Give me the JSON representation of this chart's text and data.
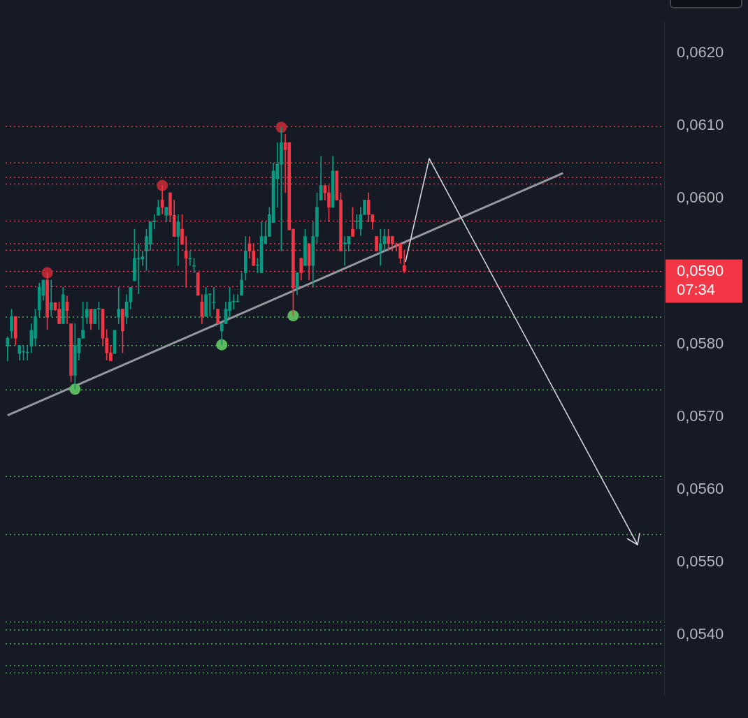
{
  "chart_data": {
    "type": "candlestick",
    "categories": [
      null,
      null,
      null,
      null,
      null,
      null,
      null,
      null,
      null,
      null,
      null,
      null,
      null,
      null,
      null,
      null,
      null,
      null,
      null,
      null,
      null,
      null,
      null,
      null,
      null,
      null,
      null,
      null,
      null,
      null,
      null,
      null,
      null,
      null,
      null,
      null,
      null,
      null,
      null,
      null,
      null,
      null,
      null,
      null,
      null,
      null,
      null,
      null,
      null,
      null,
      null,
      null,
      null,
      null,
      null,
      null,
      null,
      null,
      null,
      null,
      null,
      null,
      null,
      null,
      null,
      null,
      null,
      null,
      null,
      null,
      null,
      null,
      null,
      null,
      null,
      null,
      null,
      null,
      null,
      null,
      null,
      null,
      null,
      null,
      null,
      null,
      null,
      null,
      null,
      null,
      null,
      null,
      null,
      null,
      null,
      null,
      null,
      null,
      null,
      null,
      null,
      null,
      null,
      null,
      null,
      null,
      null,
      null,
      null,
      null,
      null,
      null,
      null,
      null,
      null,
      null,
      null,
      null,
      null,
      null,
      null,
      null,
      null,
      null,
      null,
      null,
      null,
      null,
      null,
      null,
      null,
      null,
      null,
      null,
      null,
      null,
      null,
      null,
      null,
      null,
      null,
      null,
      null,
      null,
      null,
      null,
      null,
      null,
      null,
      null,
      null,
      null,
      null,
      null,
      null,
      null,
      null,
      null,
      null,
      null,
      null,
      null,
      null,
      null,
      null,
      null
    ],
    "ohlc": [
      [
        0.05797,
        0.0581,
        0.05777,
        0.05808
      ],
      [
        0.05818,
        0.05848,
        0.05808,
        0.05838
      ],
      [
        0.05838,
        0.05838,
        0.05799,
        0.05808
      ],
      [
        0.05787,
        0.05798,
        0.05778,
        0.05798
      ],
      [
        0.05789,
        0.05798,
        0.05778,
        0.0579
      ],
      [
        0.05788,
        0.05798,
        0.05778,
        0.05789
      ],
      [
        0.05797,
        0.05828,
        0.05788,
        0.05819
      ],
      [
        0.05808,
        0.05848,
        0.05799,
        0.05838
      ],
      [
        0.05847,
        0.05884,
        0.05838,
        0.05878
      ],
      [
        0.05867,
        0.05888,
        0.0586,
        0.05888
      ],
      [
        0.05888,
        0.05898,
        0.0582,
        0.05837
      ],
      [
        0.05847,
        0.05888,
        0.05838,
        0.05857
      ],
      [
        0.05857,
        0.05857,
        0.05846,
        0.05847
      ],
      [
        0.05848,
        0.05858,
        0.05828,
        0.05828
      ],
      [
        0.05828,
        0.05878,
        0.05828,
        0.05868
      ],
      [
        0.05858,
        0.05866,
        0.05828,
        0.05846
      ],
      [
        0.05828,
        0.05828,
        0.05748,
        0.05757
      ],
      [
        0.05757,
        0.05828,
        0.05738,
        0.05798
      ],
      [
        0.05788,
        0.05808,
        0.05778,
        0.05808
      ],
      [
        0.05808,
        0.05858,
        0.05808,
        0.05819
      ],
      [
        0.05837,
        0.05858,
        0.05828,
        0.05848
      ],
      [
        0.05848,
        0.05848,
        0.0582,
        0.05828
      ],
      [
        0.05828,
        0.05848,
        0.05828,
        0.05848
      ],
      [
        0.05848,
        0.05858,
        0.0582,
        0.05849
      ],
      [
        0.05848,
        0.05848,
        0.05799,
        0.05808
      ],
      [
        0.05808,
        0.0582,
        0.05778,
        0.05788
      ],
      [
        0.05788,
        0.05798,
        0.05777,
        0.05777
      ],
      [
        0.05787,
        0.05819,
        0.05787,
        0.05819
      ],
      [
        0.05837,
        0.05878,
        0.05828,
        0.05848
      ],
      [
        0.05848,
        0.05848,
        0.05788,
        0.05818
      ],
      [
        0.05838,
        0.05868,
        0.05828,
        0.05858
      ],
      [
        0.05858,
        0.05878,
        0.05848,
        0.05878
      ],
      [
        0.05887,
        0.05958,
        0.05887,
        0.05918
      ],
      [
        0.05917,
        0.05938,
        0.05869,
        0.05918
      ],
      [
        0.05917,
        0.05928,
        0.05908,
        0.0592
      ],
      [
        0.05928,
        0.05958,
        0.05901,
        0.05948
      ],
      [
        0.05937,
        0.05968,
        0.05929,
        0.05968
      ],
      [
        0.05968,
        0.05978,
        0.05958,
        0.05969
      ],
      [
        0.05977,
        0.05998,
        0.05977,
        0.05988
      ],
      [
        0.05998,
        0.06018,
        0.05979,
        0.05988
      ],
      [
        0.05977,
        0.05988,
        0.05968,
        0.05988
      ],
      [
        0.06008,
        0.06008,
        0.05968,
        0.05977
      ],
      [
        0.05977,
        0.05998,
        0.05948,
        0.05948
      ],
      [
        0.05948,
        0.05978,
        0.05908,
        0.05968
      ],
      [
        0.05958,
        0.05978,
        0.05937,
        0.05937
      ],
      [
        0.05928,
        0.05948,
        0.05878,
        0.05918
      ],
      [
        0.05917,
        0.05928,
        0.05908,
        0.05918
      ],
      [
        0.05907,
        0.05918,
        0.05898,
        0.05908
      ],
      [
        0.05898,
        0.05898,
        0.05867,
        0.05867
      ],
      [
        0.05858,
        0.05868,
        0.05828,
        0.05838
      ],
      [
        0.05838,
        0.05878,
        0.05838,
        0.05868
      ],
      [
        0.05868,
        0.05869,
        0.05838,
        0.05869
      ],
      [
        0.05857,
        0.05878,
        0.05848,
        0.05858
      ],
      [
        0.05848,
        0.05848,
        0.05828,
        0.05828
      ],
      [
        0.05818,
        0.05828,
        0.05799,
        0.05828
      ],
      [
        0.05828,
        0.05858,
        0.05828,
        0.05848
      ],
      [
        0.05846,
        0.05878,
        0.05838,
        0.05858
      ],
      [
        0.05858,
        0.05868,
        0.05848,
        0.05859
      ],
      [
        0.05858,
        0.05868,
        0.05858,
        0.05859
      ],
      [
        0.05867,
        0.05898,
        0.05867,
        0.05888
      ],
      [
        0.05898,
        0.05948,
        0.05888,
        0.05928
      ],
      [
        0.05938,
        0.05948,
        0.05918,
        0.05928
      ],
      [
        0.05928,
        0.05938,
        0.05908,
        0.05908
      ],
      [
        0.05908,
        0.05918,
        0.05898,
        0.05909
      ],
      [
        0.05898,
        0.05968,
        0.05898,
        0.05948
      ],
      [
        0.05938,
        0.05968,
        0.05938,
        0.05948
      ],
      [
        0.05948,
        0.05988,
        0.05948,
        0.05978
      ],
      [
        0.05967,
        0.06049,
        0.05967,
        0.06038
      ],
      [
        0.06027,
        0.06077,
        0.05988,
        0.06047
      ],
      [
        0.06047,
        0.06098,
        0.05928,
        0.06077
      ],
      [
        0.06077,
        0.06088,
        0.06008,
        0.06067
      ],
      [
        0.06077,
        0.06077,
        0.05957,
        0.05957
      ],
      [
        0.05958,
        0.05958,
        0.05839,
        0.05877
      ],
      [
        0.05877,
        0.05898,
        0.05868,
        0.05898
      ],
      [
        0.05918,
        0.05918,
        0.05888,
        0.05898
      ],
      [
        0.05908,
        0.05958,
        0.05908,
        0.05948
      ],
      [
        0.05938,
        0.05938,
        0.05888,
        0.05908
      ],
      [
        0.05908,
        0.05968,
        0.05878,
        0.05948
      ],
      [
        0.05948,
        0.06008,
        0.05939,
        0.05988
      ],
      [
        0.05998,
        0.06058,
        0.05998,
        0.06018
      ],
      [
        0.06018,
        0.06018,
        0.05998,
        0.06008
      ],
      [
        0.06008,
        0.06018,
        0.05968,
        0.05988
      ],
      [
        0.05988,
        0.06058,
        0.05988,
        0.06038
      ],
      [
        0.06038,
        0.06038,
        0.05998,
        0.05998
      ],
      [
        0.05998,
        0.06008,
        0.05928,
        0.05928
      ],
      [
        0.05938,
        0.05948,
        0.05908,
        0.05939
      ],
      [
        0.05938,
        0.05948,
        0.05928,
        0.05948
      ],
      [
        0.05958,
        0.05988,
        0.05948,
        0.05948
      ],
      [
        0.05968,
        0.05978,
        0.05958,
        0.05969
      ],
      [
        0.05958,
        0.05988,
        0.05949,
        0.05978
      ],
      [
        0.05978,
        0.05998,
        0.05978,
        0.05998
      ],
      [
        0.05998,
        0.06008,
        0.05968,
        0.05978
      ],
      [
        0.05978,
        0.05978,
        0.05958,
        0.05968
      ],
      [
        0.05948,
        0.05948,
        0.05928,
        0.05928
      ],
      [
        0.05928,
        0.05958,
        0.05908,
        0.05938
      ],
      [
        0.05938,
        0.05958,
        0.05928,
        0.05948
      ],
      [
        0.05948,
        0.05958,
        0.05928,
        0.05938
      ],
      [
        0.05948,
        0.05948,
        0.05928,
        0.05938
      ],
      [
        0.05938,
        0.05939,
        0.05928,
        0.05937
      ],
      [
        0.05938,
        0.05938,
        0.05911,
        0.05918
      ],
      [
        0.05908,
        0.05928,
        0.05898,
        0.059
      ],
      null,
      null,
      null,
      null,
      null,
      null,
      null,
      null,
      null,
      null,
      null,
      null,
      null,
      null,
      null,
      null,
      null,
      null,
      null,
      null,
      null,
      null,
      null,
      null,
      null,
      null,
      null,
      null,
      null,
      null,
      null,
      null,
      null,
      null,
      null,
      null,
      null,
      null,
      null,
      null,
      null,
      null,
      null,
      null,
      null,
      null,
      null,
      null,
      null,
      null,
      null,
      null,
      null,
      null,
      null,
      null,
      null,
      null,
      null,
      null,
      null,
      null,
      null,
      null,
      null
    ],
    "colors": [
      "#089981",
      "#089981",
      "#f23645",
      "#089981",
      "#089981",
      "#089981",
      "#089981",
      "#089981",
      "#089981",
      "#089981",
      "#f23645",
      "#089981",
      "#f23645",
      "#f23645",
      "#089981",
      "#f23645",
      "#f23645",
      "#089981",
      "#089981",
      "#089981",
      "#089981",
      "#f23645",
      "#089981",
      "#089981",
      "#f23645",
      "#f23645",
      "#f23645",
      "#089981",
      "#089981",
      "#f23645",
      "#089981",
      "#089981",
      "#089981",
      "#089981",
      "#089981",
      "#089981",
      "#089981",
      "#089981",
      "#089981",
      "#f23645",
      "#089981",
      "#f23645",
      "#f23645",
      "#089981",
      "#f23645",
      "#f23645",
      "#089981",
      "#089981",
      "#f23645",
      "#f23645",
      "#089981",
      "#089981",
      "#089981",
      "#f23645",
      "#089981",
      "#089981",
      "#089981",
      "#089981",
      "#089981",
      "#089981",
      "#089981",
      "#f23645",
      "#f23645",
      "#089981",
      "#089981",
      "#089981",
      "#089981",
      "#089981",
      "#089981",
      "#089981",
      "#f23645",
      "#f23645",
      "#f23645",
      "#089981",
      "#f23645",
      "#089981",
      "#f23645",
      "#089981",
      "#089981",
      "#089981",
      "#f23645",
      "#f23645",
      "#089981",
      "#f23645",
      "#f23645",
      "#089981",
      "#089981",
      "#f23645",
      "#089981",
      "#089981",
      "#089981",
      "#f23645",
      "#f23645",
      "#f23645",
      "#089981",
      "#089981",
      "#f23645",
      "#f23645",
      "#f23645",
      "#f23645",
      "#f23645",
      null,
      null,
      null,
      null,
      null,
      null,
      null,
      null,
      null,
      null,
      null,
      null,
      null,
      null,
      null,
      null,
      null,
      null,
      null,
      null,
      null,
      null,
      null,
      null,
      null,
      null,
      null,
      null,
      null,
      null,
      null,
      null,
      null,
      null,
      null,
      null,
      null,
      null,
      null,
      null,
      null,
      null,
      null,
      null,
      null,
      null,
      null,
      null,
      null,
      null,
      null,
      null,
      null,
      null,
      null,
      null,
      null,
      null,
      null,
      null,
      null,
      null,
      null,
      null,
      null
    ],
    "series": [
      {
        "type": "line",
        "color": "#9598a1",
        "line_style": "solid",
        "marker": "none",
        "values": [
          0.05702,
          null,
          null,
          null,
          null,
          null,
          null,
          null,
          null,
          null,
          null,
          null,
          null,
          null,
          null,
          null,
          null,
          null,
          null,
          null,
          null,
          null,
          null,
          null,
          null,
          null,
          null,
          null,
          null,
          null,
          null,
          null,
          null,
          null,
          null,
          null,
          null,
          null,
          null,
          null,
          null,
          null,
          null,
          null,
          null,
          null,
          null,
          null,
          null,
          null,
          null,
          null,
          null,
          null,
          null,
          null,
          null,
          null,
          null,
          null,
          null,
          null,
          null,
          null,
          null,
          null,
          null,
          null,
          null,
          null,
          null,
          null,
          null,
          null,
          null,
          null,
          null,
          null,
          null,
          null,
          null,
          null,
          null,
          null,
          null,
          null,
          null,
          null,
          null,
          null,
          null,
          null,
          null,
          null,
          null,
          null,
          null,
          null,
          null,
          null,
          null,
          null,
          null,
          null,
          null,
          null,
          null,
          null,
          null,
          null,
          null,
          null,
          null,
          null,
          null,
          null,
          null,
          null,
          null,
          null,
          null,
          null,
          null,
          null,
          null,
          null,
          null,
          null,
          null,
          null,
          null,
          null,
          null,
          null,
          null,
          null,
          null,
          null,
          null,
          null,
          0.06035,
          null,
          null,
          null,
          null,
          null,
          null,
          null,
          null,
          null,
          null,
          null,
          null,
          null,
          null,
          null,
          null,
          null,
          null,
          null,
          null,
          null,
          null,
          null,
          null,
          null
        ]
      },
      {
        "type": "scatter",
        "color": "#b22833",
        "marker": "circle",
        "values": [
          null,
          null,
          null,
          null,
          null,
          null,
          null,
          null,
          null,
          null,
          0.05898,
          null,
          null,
          null,
          null,
          null,
          null,
          null,
          null,
          null,
          null,
          null,
          null,
          null,
          null,
          null,
          null,
          null,
          null,
          null,
          null,
          null,
          null,
          null,
          null,
          null,
          null,
          null,
          null,
          0.06018,
          null,
          null,
          null,
          null,
          null,
          null,
          null,
          null,
          null,
          null,
          null,
          null,
          null,
          null,
          null,
          null,
          null,
          null,
          null,
          null,
          null,
          null,
          null,
          null,
          null,
          null,
          null,
          null,
          null,
          0.06098,
          null,
          null,
          null,
          null,
          null,
          null,
          null,
          null,
          null,
          null,
          null,
          null,
          null,
          null,
          null,
          null,
          null,
          null,
          null,
          null,
          null,
          null,
          null,
          null,
          null,
          null,
          null,
          null,
          null,
          null,
          null,
          null,
          null,
          null,
          null,
          null,
          null,
          null,
          null,
          null,
          null,
          null,
          null,
          null,
          null,
          null,
          null,
          null,
          null,
          null,
          null,
          null,
          null,
          null,
          null,
          null,
          null,
          null,
          null,
          null,
          null,
          null,
          null,
          null,
          null,
          null,
          null,
          null,
          null,
          null,
          null,
          null,
          null,
          null,
          null,
          null,
          null,
          null,
          null,
          null,
          null,
          null,
          null,
          null,
          null,
          null,
          null,
          null,
          null,
          null,
          null,
          null,
          null,
          null,
          null,
          null
        ]
      },
      {
        "type": "scatter",
        "color": "#5cb85c",
        "marker": "circle",
        "values": [
          null,
          null,
          null,
          null,
          null,
          null,
          null,
          null,
          null,
          null,
          null,
          null,
          null,
          null,
          null,
          null,
          null,
          0.05738,
          null,
          null,
          null,
          null,
          null,
          null,
          null,
          null,
          null,
          null,
          null,
          null,
          null,
          null,
          null,
          null,
          null,
          null,
          null,
          null,
          null,
          null,
          null,
          null,
          null,
          null,
          null,
          null,
          null,
          null,
          null,
          null,
          null,
          null,
          null,
          null,
          0.05799,
          null,
          null,
          null,
          null,
          null,
          null,
          null,
          null,
          null,
          null,
          null,
          null,
          null,
          null,
          null,
          null,
          null,
          0.05839,
          null,
          null,
          null,
          null,
          null,
          null,
          null,
          null,
          null,
          null,
          null,
          null,
          null,
          null,
          null,
          null,
          null,
          null,
          null,
          null,
          null,
          null,
          null,
          null,
          null,
          null,
          null,
          null,
          null,
          null,
          null,
          null,
          null,
          null,
          null,
          null,
          null,
          null,
          null,
          null,
          null,
          null,
          null,
          null,
          null,
          null,
          null,
          null,
          null,
          null,
          null,
          null,
          null,
          null,
          null,
          null,
          null,
          null,
          null,
          null,
          null,
          null,
          null,
          null,
          null,
          null,
          null,
          null,
          null,
          null,
          null,
          null,
          null,
          null,
          null,
          null,
          null,
          null,
          null,
          null,
          null,
          null,
          null,
          null,
          null,
          null,
          null,
          null,
          null,
          null,
          null,
          null,
          null
        ]
      }
    ],
    "ylim": [
      0.05316,
      0.06243
    ],
    "yticks": [
      {
        "value": 0.062,
        "label": "0,0620"
      },
      {
        "value": 0.061,
        "label": "0,0610"
      },
      {
        "value": 0.06,
        "label": "0,0600"
      },
      {
        "value": 0.059,
        "label": null
      },
      {
        "value": 0.058,
        "label": "0,0580"
      },
      {
        "value": 0.057,
        "label": "0,0570"
      },
      {
        "value": 0.056,
        "label": "0,0560"
      },
      {
        "value": 0.055,
        "label": "0,0550"
      },
      {
        "value": 0.054,
        "label": "0,0540"
      }
    ],
    "tick_labels": "y",
    "grid": false,
    "ref_lines": [
      {
        "axis": "y",
        "value": 0.06099,
        "color": "#f23645",
        "line_style": "dotted"
      },
      {
        "axis": "y",
        "value": 0.06049,
        "color": "#f23645",
        "line_style": "dotted"
      },
      {
        "axis": "y",
        "value": 0.06029,
        "color": "#f23645",
        "line_style": "dotted"
      },
      {
        "axis": "y",
        "value": 0.0602,
        "color": "#f23645",
        "line_style": "dotted"
      },
      {
        "axis": "y",
        "value": 0.05969,
        "color": "#f23645",
        "line_style": "dotted"
      },
      {
        "axis": "y",
        "value": 0.05938,
        "color": "#f23645",
        "line_style": "dotted"
      },
      {
        "axis": "y",
        "value": 0.05929,
        "color": "#f23645",
        "line_style": "dotted"
      },
      {
        "axis": "y",
        "value": 0.059,
        "color": "#f23645",
        "line_style": "dotted",
        "label": "0,0590"
      },
      {
        "axis": "y",
        "value": 0.05879,
        "color": "#f23645",
        "line_style": "dotted"
      },
      {
        "axis": "y",
        "value": 0.05837,
        "color": "#4caf50",
        "line_style": "dotted"
      },
      {
        "axis": "y",
        "value": 0.05798,
        "color": "#4caf50",
        "line_style": "dotted"
      },
      {
        "axis": "y",
        "value": 0.05737,
        "color": "#4caf50",
        "line_style": "dotted"
      },
      {
        "axis": "y",
        "value": 0.05618,
        "color": "#4caf50",
        "line_style": "dotted"
      },
      {
        "axis": "y",
        "value": 0.05538,
        "color": "#4caf50",
        "line_style": "dotted"
      },
      {
        "axis": "y",
        "value": 0.05418,
        "color": "#4caf50",
        "line_style": "dotted"
      },
      {
        "axis": "y",
        "value": 0.05407,
        "color": "#4caf50",
        "line_style": "dotted"
      },
      {
        "axis": "y",
        "value": 0.05388,
        "color": "#4caf50",
        "line_style": "dotted"
      },
      {
        "axis": "y",
        "value": 0.05358,
        "color": "#4caf50",
        "line_style": "dotted"
      },
      {
        "axis": "y",
        "value": 0.05348,
        "color": "#4caf50",
        "line_style": "dotted"
      }
    ],
    "annotations": [
      "07:34"
    ]
  }
}
